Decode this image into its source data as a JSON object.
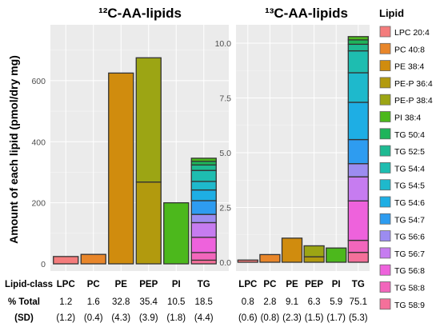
{
  "figure": {
    "ylabel": "Amount of each lipid (pmol/dry mg)",
    "legend_title": "Lipid",
    "row_labels": [
      "Lipid-class",
      "% Total",
      "(SD)"
    ]
  },
  "legend": [
    {
      "label": "LPC 20:4",
      "color": "#F47C7C"
    },
    {
      "label": "PC 40:8",
      "color": "#E8862A"
    },
    {
      "label": "PE 38:4",
      "color": "#D08C0E"
    },
    {
      "label": "PE-P 36:4",
      "color": "#B29A0E"
    },
    {
      "label": "PE-P 38:4",
      "color": "#9CA514"
    },
    {
      "label": "PI 38:4",
      "color": "#4CB81C"
    },
    {
      "label": "TG 50:4",
      "color": "#1EB45A"
    },
    {
      "label": "TG 52:5",
      "color": "#1EBA92"
    },
    {
      "label": "TG 54:4",
      "color": "#1EBDB0"
    },
    {
      "label": "TG 54:5",
      "color": "#1EB9CC"
    },
    {
      "label": "TG 54:6",
      "color": "#1EAEE4"
    },
    {
      "label": "TG 54:7",
      "color": "#2E9CF0"
    },
    {
      "label": "TG 56:6",
      "color": "#9C8CF0"
    },
    {
      "label": "TG 56:7",
      "color": "#C67CF0"
    },
    {
      "label": "TG 56:8",
      "color": "#EE62DC"
    },
    {
      "label": "TG 58:8",
      "color": "#F266BC"
    },
    {
      "label": "TG 58:9",
      "color": "#F4709A"
    }
  ],
  "chart_data": [
    {
      "type": "bar",
      "stacked": true,
      "title": "¹²C-AA-lipids",
      "ylabel": "Amount of each lipid (pmol/dry mg)",
      "categories": [
        "LPC",
        "PC",
        "PE",
        "PEP",
        "PI",
        "TG"
      ],
      "ylim": [
        0,
        800
      ],
      "yticks": [
        0,
        200,
        400,
        600
      ],
      "grid": true,
      "pct_total": [
        "1.2",
        "1.6",
        "32.8",
        "35.4",
        "10.5",
        "18.5"
      ],
      "sd": [
        "(1.2)",
        "(0.4)",
        "(4.3)",
        "(3.9)",
        "(1.8)",
        "(4.4)"
      ],
      "bars": [
        [
          {
            "lipid": "LPC 20:4",
            "value": 24
          }
        ],
        [
          {
            "lipid": "PC 40:8",
            "value": 31
          }
        ],
        [
          {
            "lipid": "PE 38:4",
            "value": 625
          }
        ],
        [
          {
            "lipid": "PE-P 36:4",
            "value": 268
          },
          {
            "lipid": "PE-P 38:4",
            "value": 407
          }
        ],
        [
          {
            "lipid": "PI 38:4",
            "value": 200
          }
        ],
        [
          {
            "lipid": "TG 58:9",
            "value": 12
          },
          {
            "lipid": "TG 58:8",
            "value": 25
          },
          {
            "lipid": "TG 56:8",
            "value": 50
          },
          {
            "lipid": "TG 56:7",
            "value": 48
          },
          {
            "lipid": "TG 56:6",
            "value": 27
          },
          {
            "lipid": "TG 54:7",
            "value": 45
          },
          {
            "lipid": "TG 54:6",
            "value": 35
          },
          {
            "lipid": "TG 54:5",
            "value": 28
          },
          {
            "lipid": "TG 54:4",
            "value": 36
          },
          {
            "lipid": "TG 52:5",
            "value": 18
          },
          {
            "lipid": "TG 50:4",
            "value": 12
          },
          {
            "lipid": "PI 38:4",
            "value": 10
          }
        ]
      ]
    },
    {
      "type": "bar",
      "stacked": true,
      "title": "¹³C-AA-lipids",
      "categories": [
        "LPC",
        "PC",
        "PE",
        "PEP",
        "PI",
        "TG"
      ],
      "ylim": [
        -0.3,
        10.5
      ],
      "yticks": [
        0.0,
        2.5,
        5.0,
        7.5,
        10.0
      ],
      "ytick_labels": [
        "0.0",
        "2.5",
        "5.0",
        "7.5",
        "10.0"
      ],
      "grid": true,
      "pct_total": [
        "0.8",
        "2.8",
        "9.1",
        "6.3",
        "5.9",
        "75.1"
      ],
      "sd": [
        "(0.6)",
        "(0.8)",
        "(2.3)",
        "(1.5)",
        "(1.7)",
        "(5.3)"
      ],
      "bars": [
        [
          {
            "lipid": "LPC 20:4",
            "value": 0.1
          }
        ],
        [
          {
            "lipid": "PC 40:8",
            "value": 0.35
          }
        ],
        [
          {
            "lipid": "PE 38:4",
            "value": 1.1
          }
        ],
        [
          {
            "lipid": "PE-P 36:4",
            "value": 0.25
          },
          {
            "lipid": "PE-P 38:4",
            "value": 0.5
          }
        ],
        [
          {
            "lipid": "PI 38:4",
            "value": 0.65
          }
        ],
        [
          {
            "lipid": "TG 58:9",
            "value": 0.45
          },
          {
            "lipid": "TG 58:8",
            "value": 0.55
          },
          {
            "lipid": "TG 56:8",
            "value": 1.8
          },
          {
            "lipid": "TG 56:7",
            "value": 1.1
          },
          {
            "lipid": "TG 56:6",
            "value": 0.6
          },
          {
            "lipid": "TG 54:7",
            "value": 1.1
          },
          {
            "lipid": "TG 54:6",
            "value": 1.7
          },
          {
            "lipid": "TG 54:5",
            "value": 1.35
          },
          {
            "lipid": "TG 54:4",
            "value": 1.0
          },
          {
            "lipid": "TG 52:5",
            "value": 0.3
          },
          {
            "lipid": "TG 50:4",
            "value": 0.2
          },
          {
            "lipid": "PI 38:4",
            "value": 0.15
          }
        ]
      ]
    }
  ]
}
